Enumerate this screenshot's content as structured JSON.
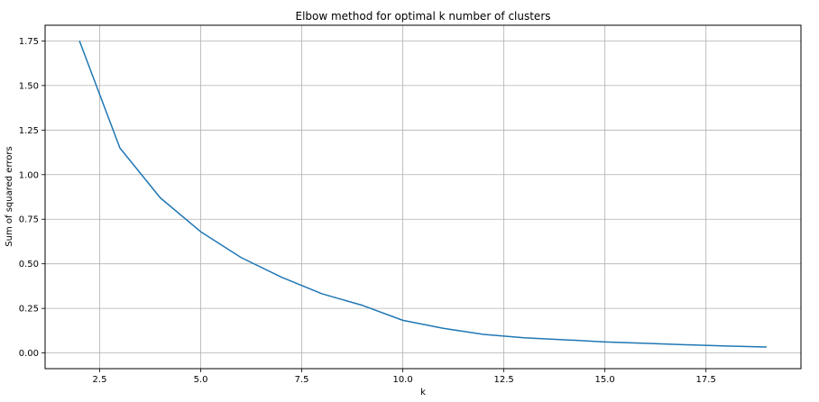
{
  "chart_data": {
    "type": "line",
    "title": "Elbow method for optimal k number of clusters",
    "xlabel": "k",
    "ylabel": "Sum of squared errors",
    "xlim": [
      1.15,
      19.85
    ],
    "ylim": [
      -0.088,
      1.838
    ],
    "x_ticks": [
      2.5,
      5.0,
      7.5,
      10.0,
      12.5,
      15.0,
      17.5
    ],
    "x_tick_labels": [
      "2.5",
      "5.0",
      "7.5",
      "10.0",
      "12.5",
      "15.0",
      "17.5"
    ],
    "y_ticks": [
      0.0,
      0.25,
      0.5,
      0.75,
      1.0,
      1.25,
      1.5,
      1.75
    ],
    "y_tick_labels": [
      "0.00",
      "0.25",
      "0.50",
      "0.75",
      "1.00",
      "1.25",
      "1.50",
      "1.75"
    ],
    "grid": true,
    "series": [
      {
        "color": "#1f77b4",
        "x": [
          2,
          3,
          4,
          5,
          6,
          7,
          8,
          9,
          10,
          11,
          12,
          13,
          14,
          15,
          16,
          17,
          18,
          19
        ],
        "y": [
          1.75,
          1.15,
          0.87,
          0.68,
          0.535,
          0.425,
          0.332,
          0.267,
          0.183,
          0.138,
          0.104,
          0.085,
          0.074,
          0.062,
          0.054,
          0.046,
          0.039,
          0.033
        ]
      }
    ]
  }
}
